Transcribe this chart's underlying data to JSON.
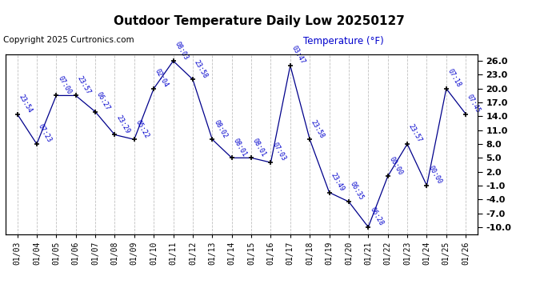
{
  "title": "Outdoor Temperature Daily Low 20250127",
  "copyright": "Copyright 2025 Curtronics.com",
  "ylabel": "Temperature (°F)",
  "background_color": "#ffffff",
  "line_color": "#00008B",
  "marker_color": "#000000",
  "label_color": "#0000CC",
  "grid_color": "#c0c0c0",
  "dates": [
    "01/03",
    "01/04",
    "01/05",
    "01/06",
    "01/07",
    "01/08",
    "01/09",
    "01/10",
    "01/11",
    "01/12",
    "01/13",
    "01/14",
    "01/15",
    "01/16",
    "01/17",
    "01/18",
    "01/19",
    "01/20",
    "01/21",
    "01/22",
    "01/23",
    "01/24",
    "01/25",
    "01/26"
  ],
  "temps": [
    14.5,
    8.0,
    18.5,
    18.5,
    15.0,
    10.0,
    9.0,
    20.0,
    26.0,
    22.0,
    9.0,
    5.0,
    5.0,
    4.0,
    25.0,
    9.0,
    -2.5,
    -4.5,
    -10.0,
    1.0,
    8.0,
    -1.0,
    20.0,
    14.5
  ],
  "time_labels": [
    "23:54",
    "07:23",
    "07:00",
    "23:57",
    "06:27",
    "23:29",
    "05:22",
    "02:04",
    "08:03",
    "23:58",
    "08:02",
    "08:01",
    "08:01",
    "07:03",
    "03:47",
    "23:58",
    "23:49",
    "06:35",
    "06:28",
    "00:00",
    "23:57",
    "00:00",
    "07:18",
    "07:45"
  ],
  "ylim": [
    -11.5,
    27.5
  ],
  "yticks": [
    -10.0,
    -7.0,
    -4.0,
    -1.0,
    2.0,
    5.0,
    8.0,
    11.0,
    14.0,
    17.0,
    20.0,
    23.0,
    26.0
  ],
  "figsize": [
    6.9,
    3.75
  ],
  "dpi": 100
}
